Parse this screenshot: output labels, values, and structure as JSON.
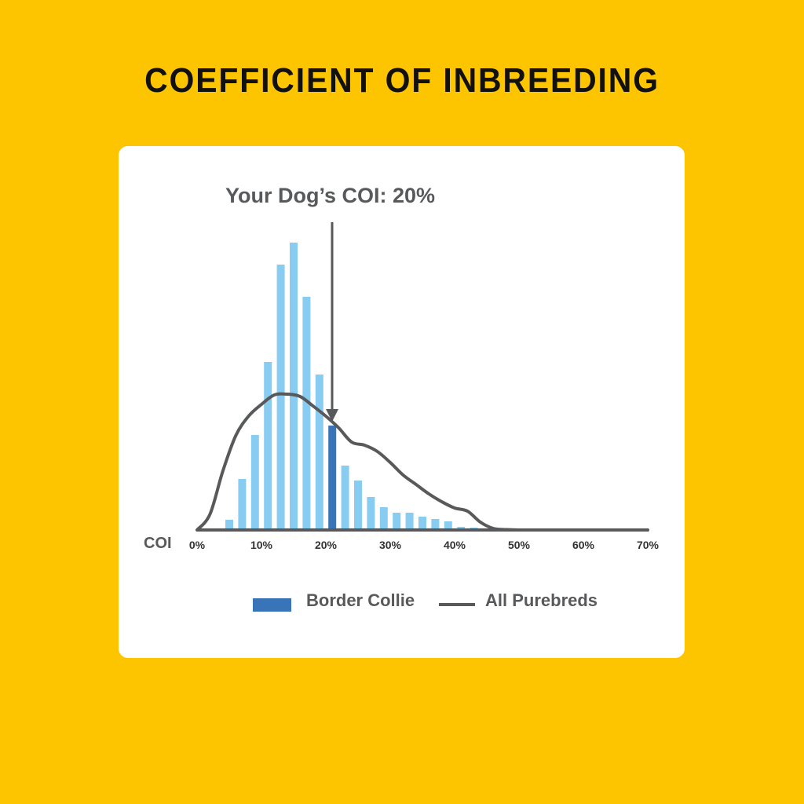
{
  "title": "COEFFICIENT OF INBREEDING",
  "annotation": "Your Dog’s COI: 20%",
  "axis": {
    "label": "COI",
    "ticks": [
      "0%",
      "10%",
      "20%",
      "30%",
      "40%",
      "50%",
      "60%",
      "70%"
    ]
  },
  "legend": {
    "bars": "Border Collie",
    "line": "All Purebreds"
  },
  "colors": {
    "background": "#FDC400",
    "bar": "#88CDF1",
    "highlight_bar": "#3A74B8",
    "line": "#58595B"
  },
  "chart_data": {
    "type": "bar",
    "title": "COEFFICIENT OF INBREEDING",
    "xlabel": "COI",
    "ylabel": "",
    "xlim": [
      0,
      70
    ],
    "x_ticks": [
      "0%",
      "10%",
      "20%",
      "30%",
      "40%",
      "50%",
      "60%",
      "70%"
    ],
    "grid": false,
    "legend_position": "bottom",
    "annotation": {
      "text": "Your Dog’s COI: 20%",
      "x": 21,
      "style": "downward arrow"
    },
    "series": [
      {
        "name": "Border Collie",
        "type": "bar",
        "x": [
          5,
          7,
          9,
          11,
          13,
          15,
          17,
          19,
          21,
          23,
          25,
          27,
          29,
          31,
          33,
          35,
          37,
          39,
          41,
          43
        ],
        "values": [
          13,
          65,
          121,
          214,
          338,
          366,
          297,
          198,
          133,
          82,
          63,
          42,
          29,
          22,
          22,
          17,
          14,
          11,
          4,
          3
        ],
        "highlight_index": 8
      },
      {
        "name": "All Purebreds",
        "type": "line",
        "x": [
          0,
          2,
          4,
          6,
          8,
          10,
          12,
          14,
          16,
          18,
          20,
          22,
          24,
          26,
          28,
          30,
          32,
          34,
          36,
          38,
          40,
          42,
          44,
          46,
          48,
          50,
          55,
          60,
          65,
          70
        ],
        "values": [
          0,
          20,
          75,
          120,
          145,
          160,
          172,
          173,
          170,
          158,
          145,
          130,
          112,
          108,
          100,
          86,
          70,
          58,
          46,
          36,
          28,
          24,
          10,
          2,
          0.5,
          0,
          0,
          0,
          0,
          0
        ]
      }
    ]
  }
}
